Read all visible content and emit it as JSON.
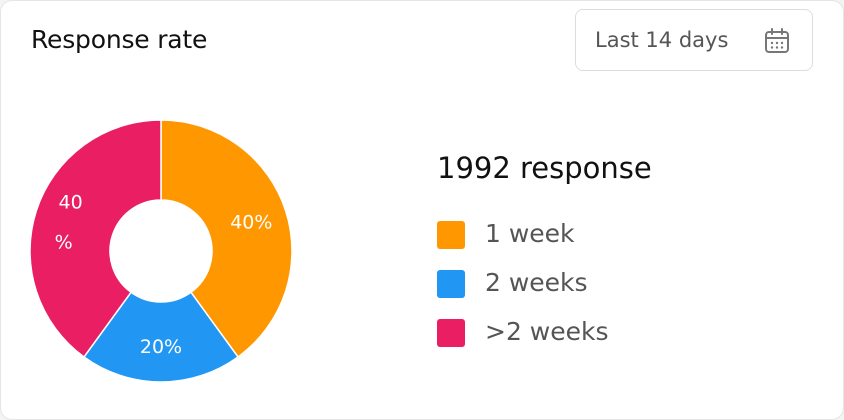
{
  "header": {
    "title": "Response rate",
    "range_label": "Last 14 days",
    "range_icon": "calendar-icon"
  },
  "summary": {
    "total_label": "1992 response"
  },
  "colors": {
    "week1": "#FF9800",
    "week2": "#2196F3",
    "over2": "#E91E63"
  },
  "chart_data": {
    "type": "pie",
    "subtype": "donut",
    "title": "Response rate",
    "labels": [
      "1 week",
      "2 weeks",
      ">2 weeks"
    ],
    "values": [
      40,
      20,
      40
    ],
    "value_labels": [
      "40%",
      "20%",
      "40\n%"
    ],
    "colors": [
      "#FF9800",
      "#2196F3",
      "#E91E63"
    ],
    "legend_placement": "right"
  }
}
